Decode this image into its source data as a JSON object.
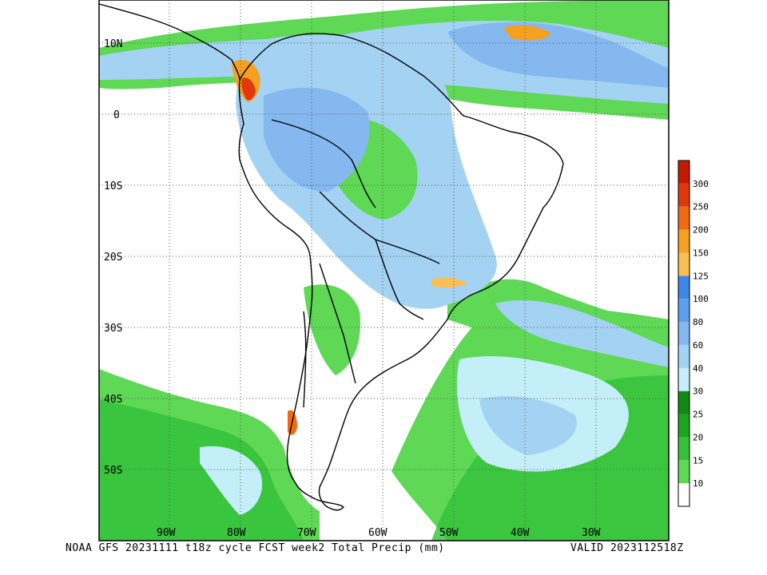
{
  "map": {
    "product": "NOAA GFS",
    "run_line": "NOAA GFS 20231111 t18z cycle FCST week2 Total Precip (mm)",
    "valid_line": "VALID 2023112518Z",
    "lat_labels": [
      "10N",
      "0",
      "10S",
      "20S",
      "30S",
      "40S",
      "50S"
    ],
    "lon_labels": [
      "90W",
      "80W",
      "70W",
      "60W",
      "50W",
      "40W",
      "30W"
    ],
    "grid": true
  },
  "colorbar": {
    "units": "mm",
    "levels": [
      "10",
      "15",
      "20",
      "25",
      "30",
      "40",
      "60",
      "80",
      "100",
      "125",
      "150",
      "200",
      "250",
      "300"
    ],
    "colors": [
      "#ffffff",
      "#5ed855",
      "#33c23a",
      "#1ca51f",
      "#108a12",
      "#c4eef8",
      "#a4d2f3",
      "#84b8ef",
      "#5c9ff0",
      "#3d86e8",
      "#f8bf55",
      "#f5a11f",
      "#f06a14",
      "#e0380c",
      "#c21b00"
    ]
  }
}
